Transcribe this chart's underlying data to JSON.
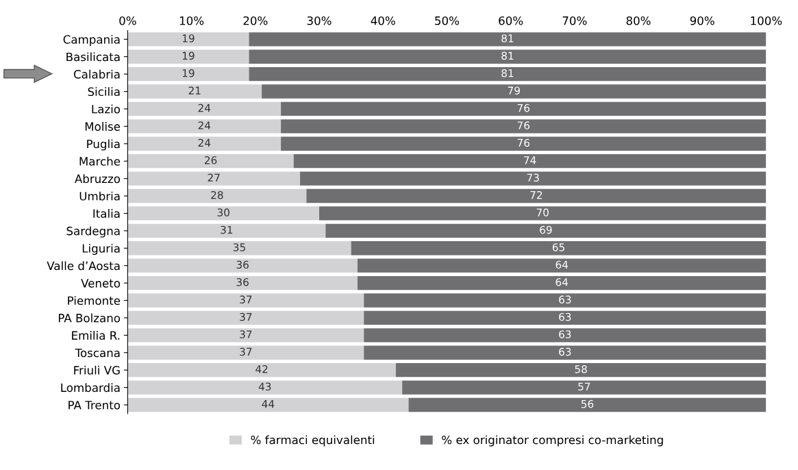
{
  "chart_data": {
    "type": "bar",
    "orientation": "horizontal",
    "stacked": true,
    "data_labels": true,
    "grid": false,
    "legend": "bottom",
    "categories": [
      "Campania",
      "Basilicata",
      "Calabria",
      "Sicilia",
      "Lazio",
      "Molise",
      "Puglia",
      "Marche",
      "Abruzzo",
      "Umbria",
      "Italia",
      "Sardegna",
      "Liguria",
      "Valle d’Aosta",
      "Veneto",
      "Piemonte",
      "PA Bolzano",
      "Emilia R.",
      "Toscana",
      "Friuli VG",
      "Lombardia",
      "PA Trento"
    ],
    "series": [
      {
        "name": "% farmaci equivalenti",
        "color": "#d2d2d4",
        "values": [
          19,
          19,
          19,
          21,
          24,
          24,
          24,
          26,
          27,
          28,
          30,
          31,
          35,
          36,
          36,
          37,
          37,
          37,
          37,
          42,
          43,
          44
        ]
      },
      {
        "name": "% ex originator compresi co-marketing",
        "color": "#6f6f71",
        "values": [
          81,
          81,
          81,
          79,
          76,
          76,
          76,
          74,
          73,
          72,
          70,
          69,
          65,
          64,
          64,
          63,
          63,
          63,
          63,
          58,
          57,
          56
        ]
      }
    ],
    "xlim": [
      0,
      100
    ],
    "xticks": [
      {
        "value": 0,
        "label": "0%"
      },
      {
        "value": 10,
        "label": "10%"
      },
      {
        "value": 20,
        "label": "20%"
      },
      {
        "value": 30,
        "label": "30%"
      },
      {
        "value": 40,
        "label": "40%"
      },
      {
        "value": 50,
        "label": "50%"
      },
      {
        "value": 60,
        "label": "60%"
      },
      {
        "value": 70,
        "label": "70%"
      },
      {
        "value": 80,
        "label": "80%"
      },
      {
        "value": 90,
        "label": "90%"
      },
      {
        "value": 100,
        "label": "100%"
      }
    ]
  }
}
